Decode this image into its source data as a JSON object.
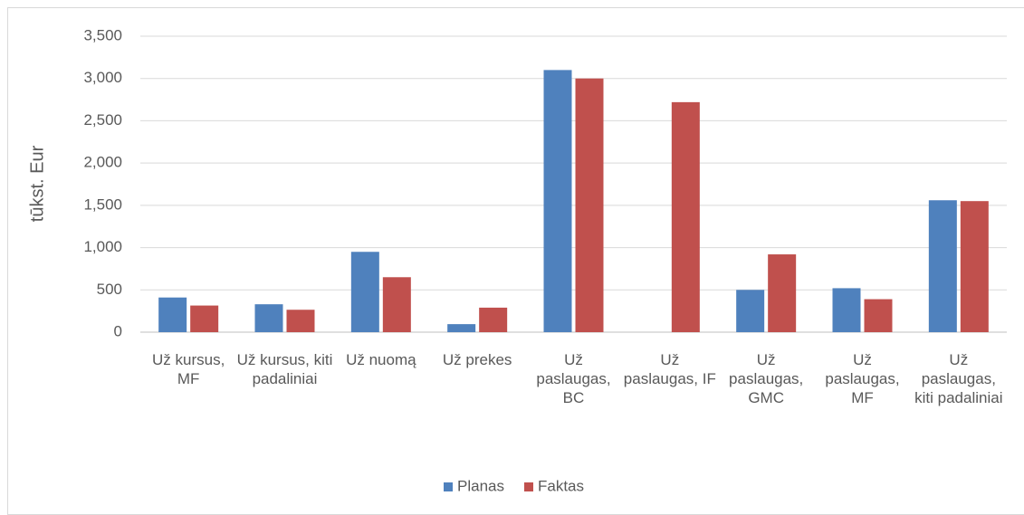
{
  "chart_data": {
    "type": "bar",
    "y_label": "tūkst. Eur",
    "categories": [
      "Už kursus, MF",
      "Už kursus, kiti padaliniai",
      "Už nuomą",
      "Už prekes",
      "Už paslaugas, BC",
      "Už paslaugas, IF",
      "Už paslaugas, GMC",
      "Už paslaugas, MF",
      "Už paslaugas, kiti padaliniai"
    ],
    "series": [
      {
        "name": "Planas",
        "color": "#4f81bd",
        "values": [
          410,
          330,
          950,
          95,
          3100,
          0,
          500,
          520,
          1560
        ]
      },
      {
        "name": "Faktas",
        "color": "#c0504d",
        "values": [
          315,
          265,
          650,
          290,
          3000,
          2720,
          920,
          390,
          1550
        ]
      }
    ],
    "ylim": [
      0,
      3500
    ],
    "yticks": [
      0,
      500,
      {
        "value": 1000,
        "label": "1,000"
      },
      {
        "value": 1500,
        "label": "1,500"
      },
      {
        "value": 2000,
        "label": "2,000"
      },
      {
        "value": 2500,
        "label": "2,500"
      },
      {
        "value": 3000,
        "label": "3,000"
      },
      {
        "value": 3500,
        "label": "3,500"
      }
    ],
    "grid": true,
    "legend": "bottom"
  }
}
